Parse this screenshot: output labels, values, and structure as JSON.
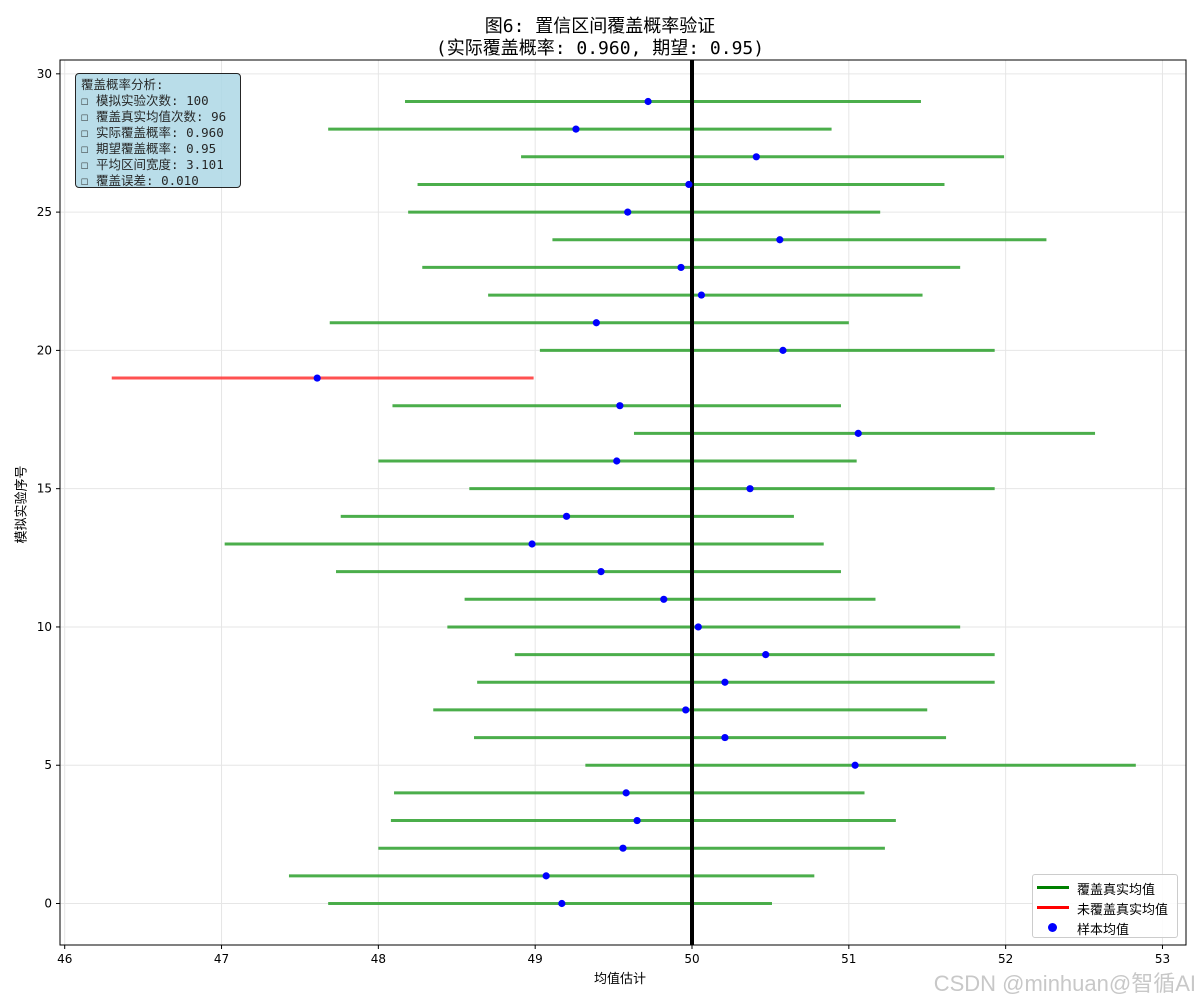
{
  "title_line1": "图6: 置信区间覆盖概率验证",
  "title_line2": "(实际覆盖概率: 0.960, 期望: 0.95)",
  "stats_box": [
    "覆盖概率分析:",
    "☐ 模拟实验次数: 100",
    "☐ 覆盖真实均值次数: 96",
    "☐ 实际覆盖概率: 0.960",
    "☐ 期望覆盖概率: 0.95",
    "☐ 平均区间宽度: 3.101",
    "☐ 覆盖误差: 0.010"
  ],
  "legend": {
    "covered": "覆盖真实均值",
    "not_covered": "未覆盖真实均值",
    "mean": "样本均值"
  },
  "watermark": "CSDN @minhuan@智循AI",
  "colors": {
    "covered": "#2ca02c",
    "not_covered": "#ff3333",
    "mean": "#0000ff",
    "true_mean_line": "#000000"
  },
  "chart_data": {
    "type": "scatter",
    "xlabel": "均值估计",
    "ylabel": "模拟实验序号",
    "xlim": [
      45.97,
      53.15
    ],
    "ylim": [
      -1.5,
      30.5
    ],
    "xticks": [
      46,
      47,
      48,
      49,
      50,
      51,
      52,
      53
    ],
    "yticks": [
      0,
      5,
      10,
      15,
      20,
      25,
      30
    ],
    "grid": true,
    "legend_position": "lower right",
    "true_mean": 50,
    "intervals": [
      {
        "i": 0,
        "mean": 49.17,
        "low": 47.68,
        "high": 50.51,
        "covered": true
      },
      {
        "i": 1,
        "mean": 49.07,
        "low": 47.43,
        "high": 50.78,
        "covered": true
      },
      {
        "i": 2,
        "mean": 49.56,
        "low": 48.0,
        "high": 51.23,
        "covered": true
      },
      {
        "i": 3,
        "mean": 49.65,
        "low": 48.08,
        "high": 51.3,
        "covered": true
      },
      {
        "i": 4,
        "mean": 49.58,
        "low": 48.1,
        "high": 51.1,
        "covered": true
      },
      {
        "i": 5,
        "mean": 51.04,
        "low": 49.32,
        "high": 52.83,
        "covered": true
      },
      {
        "i": 6,
        "mean": 50.21,
        "low": 48.61,
        "high": 51.62,
        "covered": true
      },
      {
        "i": 7,
        "mean": 49.96,
        "low": 48.35,
        "high": 51.5,
        "covered": true
      },
      {
        "i": 8,
        "mean": 50.21,
        "low": 48.63,
        "high": 51.93,
        "covered": true
      },
      {
        "i": 9,
        "mean": 50.47,
        "low": 48.87,
        "high": 51.93,
        "covered": true
      },
      {
        "i": 10,
        "mean": 50.04,
        "low": 48.44,
        "high": 51.71,
        "covered": true
      },
      {
        "i": 11,
        "mean": 49.82,
        "low": 48.55,
        "high": 51.17,
        "covered": true
      },
      {
        "i": 12,
        "mean": 49.42,
        "low": 47.73,
        "high": 50.95,
        "covered": true
      },
      {
        "i": 13,
        "mean": 48.98,
        "low": 47.02,
        "high": 50.84,
        "covered": true
      },
      {
        "i": 14,
        "mean": 49.2,
        "low": 47.76,
        "high": 50.65,
        "covered": true
      },
      {
        "i": 15,
        "mean": 50.37,
        "low": 48.58,
        "high": 51.93,
        "covered": true
      },
      {
        "i": 16,
        "mean": 49.52,
        "low": 48.0,
        "high": 51.05,
        "covered": true
      },
      {
        "i": 17,
        "mean": 51.06,
        "low": 49.63,
        "high": 52.57,
        "covered": true
      },
      {
        "i": 18,
        "mean": 49.54,
        "low": 48.09,
        "high": 50.95,
        "covered": true
      },
      {
        "i": 19,
        "mean": 47.61,
        "low": 46.3,
        "high": 48.99,
        "covered": false
      },
      {
        "i": 20,
        "mean": 50.58,
        "low": 49.03,
        "high": 51.93,
        "covered": true
      },
      {
        "i": 21,
        "mean": 49.39,
        "low": 47.69,
        "high": 51.0,
        "covered": true
      },
      {
        "i": 22,
        "mean": 50.06,
        "low": 48.7,
        "high": 51.47,
        "covered": true
      },
      {
        "i": 23,
        "mean": 49.93,
        "low": 48.28,
        "high": 51.71,
        "covered": true
      },
      {
        "i": 24,
        "mean": 50.56,
        "low": 49.11,
        "high": 52.26,
        "covered": true
      },
      {
        "i": 25,
        "mean": 49.59,
        "low": 48.19,
        "high": 51.2,
        "covered": true
      },
      {
        "i": 26,
        "mean": 49.98,
        "low": 48.25,
        "high": 51.61,
        "covered": true
      },
      {
        "i": 27,
        "mean": 50.41,
        "low": 48.91,
        "high": 51.99,
        "covered": true
      },
      {
        "i": 28,
        "mean": 49.26,
        "low": 47.68,
        "high": 50.89,
        "covered": true
      },
      {
        "i": 29,
        "mean": 49.72,
        "low": 48.17,
        "high": 51.46,
        "covered": true
      }
    ]
  }
}
